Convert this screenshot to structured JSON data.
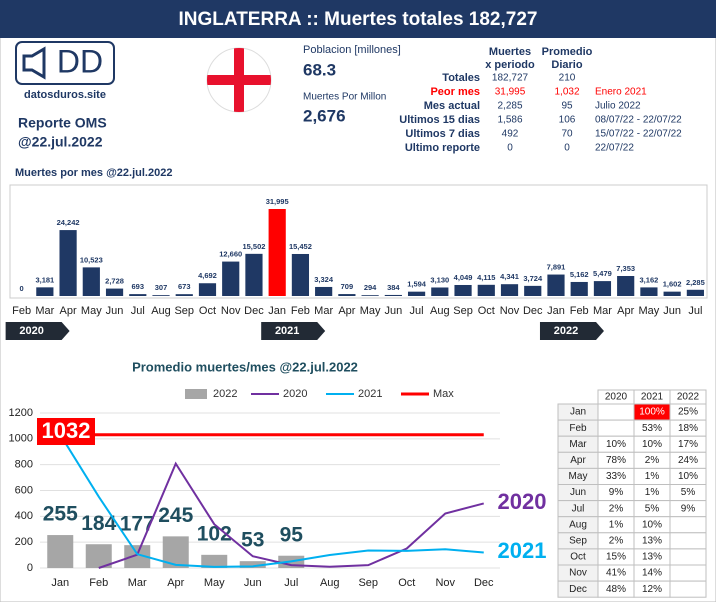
{
  "header": {
    "title": "INGLATERRA :: Muertes totales 182,727"
  },
  "logo": {
    "text": "DD",
    "site": "datosduros.site"
  },
  "report": {
    "line1": "Reporte OMS",
    "line2": "@22.jul.2022"
  },
  "population": {
    "label": "Poblacion [millones]",
    "value": "68.3"
  },
  "per_million": {
    "label": "Muertes Por Millon",
    "value": "2,676"
  },
  "stats": {
    "headers": [
      [
        "Muertes",
        "x periodo"
      ],
      [
        "Promedio",
        "Diario"
      ]
    ],
    "rows": [
      [
        "Totales",
        "182,727",
        "210",
        null
      ],
      [
        "Peor mes",
        "31,995",
        "1,032",
        "Enero 2021"
      ],
      [
        "Mes actual",
        "2,285",
        "95",
        "Julio 2022"
      ],
      [
        "Ultimos 15 dias",
        "1,586",
        "106",
        "08/07/22 - 22/07/22"
      ],
      [
        "Ultimos 7 dias",
        "492",
        "70",
        "15/07/22 - 22/07/22"
      ],
      [
        "Ultimo reporte",
        "0",
        "0",
        "22/07/22"
      ]
    ]
  },
  "chart_data": [
    {
      "type": "bar",
      "title": "Muertes por mes @22.jul.2022",
      "categories": [
        "Feb",
        "Mar",
        "Apr",
        "May",
        "Jun",
        "Jul",
        "Aug",
        "Sep",
        "Oct",
        "Nov",
        "Dec",
        "Jan",
        "Feb",
        "Mar",
        "Apr",
        "May",
        "Jun",
        "Jul",
        "Aug",
        "Sep",
        "Oct",
        "Nov",
        "Dec",
        "Jan",
        "Feb",
        "Mar",
        "Apr",
        "May",
        "Jun",
        "Jul"
      ],
      "years": [
        "2020",
        "2021",
        "2022"
      ],
      "values": [
        0,
        3181,
        24242,
        10523,
        2728,
        693,
        307,
        673,
        4692,
        12660,
        15502,
        31995,
        15452,
        3324,
        709,
        294,
        384,
        1594,
        3130,
        4049,
        4115,
        4341,
        3724,
        7891,
        5162,
        5479,
        7353,
        3162,
        1602,
        2285
      ],
      "value_labels": [
        "0",
        "3,181",
        "24,242",
        "10,523",
        "2,728",
        "693",
        "307",
        "673",
        "4,692",
        "12,660",
        "15,502",
        "31,995",
        "15,452",
        "3,324",
        "709",
        "294",
        "384",
        "1,594",
        "3,130",
        "4,049",
        "4,115",
        "4,341",
        "3,724",
        "7,891",
        "5,162",
        "5,479",
        "7,353",
        "3,162",
        "1,602",
        "2,285"
      ],
      "colors": [
        "#1f3864",
        "#1f3864",
        "#1f3864",
        "#1f3864",
        "#1f3864",
        "#1f3864",
        "#1f3864",
        "#1f3864",
        "#1f3864",
        "#1f3864",
        "#1f3864",
        "#ff0000",
        "#1f3864",
        "#1f3864",
        "#1f3864",
        "#1f3864",
        "#1f3864",
        "#1f3864",
        "#1f3864",
        "#1f3864",
        "#1f3864",
        "#1f3864",
        "#1f3864",
        "#1f3864",
        "#1f3864",
        "#1f3864",
        "#1f3864",
        "#1f3864",
        "#1f3864",
        "#1f3864"
      ]
    },
    {
      "type": "combo",
      "title": "Promedio muertes/mes @22.jul.2022",
      "categories": [
        "Jan",
        "Feb",
        "Mar",
        "Apr",
        "May",
        "Jun",
        "Jul",
        "Aug",
        "Sep",
        "Oct",
        "Nov",
        "Dec"
      ],
      "ylim": [
        0,
        1200
      ],
      "yticks": [
        0,
        200,
        400,
        600,
        800,
        1000,
        1200
      ],
      "series": [
        {
          "name": "2022",
          "type": "bar",
          "color": "#a6a6a6",
          "values": [
            255,
            184,
            177,
            245,
            102,
            53,
            95,
            null,
            null,
            null,
            null,
            null
          ]
        },
        {
          "name": "2020",
          "type": "line",
          "color": "#7030a0",
          "values": [
            null,
            0,
            103,
            808,
            339,
            91,
            22,
            10,
            22,
            151,
            422,
            500
          ]
        },
        {
          "name": "2021",
          "type": "line",
          "color": "#00b0f0",
          "values": [
            1032,
            552,
            107,
            24,
            9,
            13,
            51,
            101,
            135,
            133,
            145,
            120
          ]
        },
        {
          "name": "Max",
          "type": "line",
          "color": "#ff0000",
          "values": [
            1032,
            1032,
            1032,
            1032,
            1032,
            1032,
            1032,
            1032,
            1032,
            1032,
            1032,
            1032
          ]
        }
      ]
    }
  ],
  "percent_table": {
    "headers": [
      "2020",
      "2021",
      "2022"
    ],
    "rows": [
      [
        "Jan",
        null,
        "100%",
        "25%"
      ],
      [
        "Feb",
        null,
        "53%",
        "18%"
      ],
      [
        "Mar",
        "10%",
        "10%",
        "17%"
      ],
      [
        "Apr",
        "78%",
        "2%",
        "24%"
      ],
      [
        "May",
        "33%",
        "1%",
        "10%"
      ],
      [
        "Jun",
        "9%",
        "1%",
        "5%"
      ],
      [
        "Jul",
        "2%",
        "5%",
        "9%"
      ],
      [
        "Aug",
        "1%",
        "10%",
        null
      ],
      [
        "Sep",
        "2%",
        "13%",
        null
      ],
      [
        "Oct",
        "15%",
        "13%",
        null
      ],
      [
        "Nov",
        "41%",
        "14%",
        null
      ],
      [
        "Dec",
        "48%",
        "12%",
        null
      ]
    ]
  }
}
